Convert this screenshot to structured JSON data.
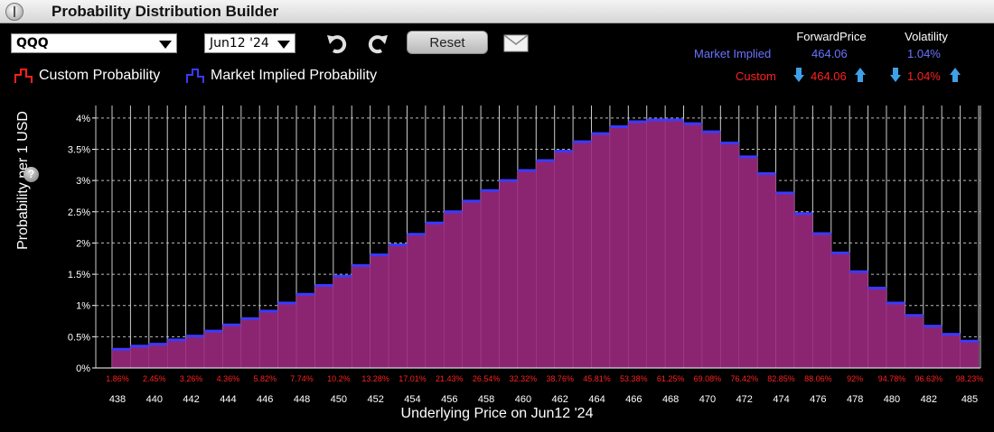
{
  "window": {
    "title": "Probability Distribution Builder"
  },
  "toolbar": {
    "symbol": "QQQ",
    "expiry": "Jun12 '24",
    "reset_label": "Reset",
    "undo_icon": "undo-icon",
    "redo_icon": "redo-icon",
    "mail_icon": "mail-icon"
  },
  "legend": {
    "custom_label": "Custom Probability",
    "market_label": "Market Implied Probability",
    "custom_color": "#ff2020",
    "market_color": "#3a3aff"
  },
  "stats": {
    "forward_header": "ForwardPrice",
    "volatility_header": "Volatility",
    "market_label": "Market Implied",
    "market_forward": "464.06",
    "market_volatility": "1.04%",
    "custom_label": "Custom",
    "custom_forward": "464.06",
    "custom_volatility": "1.04%"
  },
  "chart_data": {
    "type": "bar",
    "xlabel": "Underlying Price on Jun12 '24",
    "ylabel": "Probability per 1 USD",
    "ylim": [
      0,
      4.2
    ],
    "y_ticks": [
      "0%",
      "0.5%",
      "1%",
      "1.5%",
      "2%",
      "2.5%",
      "3%",
      "3.5%",
      "4%"
    ],
    "x_tick_labels": [
      "438",
      "440",
      "442",
      "444",
      "446",
      "448",
      "450",
      "452",
      "454",
      "456",
      "458",
      "460",
      "462",
      "464",
      "466",
      "468",
      "470",
      "472",
      "474",
      "476",
      "478",
      "480",
      "482",
      "485"
    ],
    "cumulative_labels": [
      "1.86%",
      "2.45%",
      "3.26%",
      "4.36%",
      "5.82%",
      "7.74%",
      "10.2%",
      "13.28%",
      "17.01%",
      "21.43%",
      "26.54%",
      "32.32%",
      "38.76%",
      "45.81%",
      "53.38%",
      "61.25%",
      "69.08%",
      "76.42%",
      "82.85%",
      "88.06%",
      "92%",
      "94.78%",
      "96.63%",
      "98.23%"
    ],
    "bar_color": "#8b2572",
    "bar_top_color": "#3a3aff",
    "values": [
      0.3,
      0.35,
      0.38,
      0.45,
      0.51,
      0.59,
      0.69,
      0.79,
      0.91,
      1.04,
      1.18,
      1.32,
      1.47,
      1.64,
      1.81,
      1.97,
      2.14,
      2.32,
      2.5,
      2.67,
      2.84,
      3.0,
      3.16,
      3.32,
      3.47,
      3.62,
      3.75,
      3.86,
      3.94,
      3.97,
      3.97,
      3.91,
      3.78,
      3.6,
      3.38,
      3.11,
      2.8,
      2.47,
      2.15,
      1.84,
      1.54,
      1.28,
      1.04,
      0.84,
      0.67,
      0.54,
      0.43
    ]
  }
}
